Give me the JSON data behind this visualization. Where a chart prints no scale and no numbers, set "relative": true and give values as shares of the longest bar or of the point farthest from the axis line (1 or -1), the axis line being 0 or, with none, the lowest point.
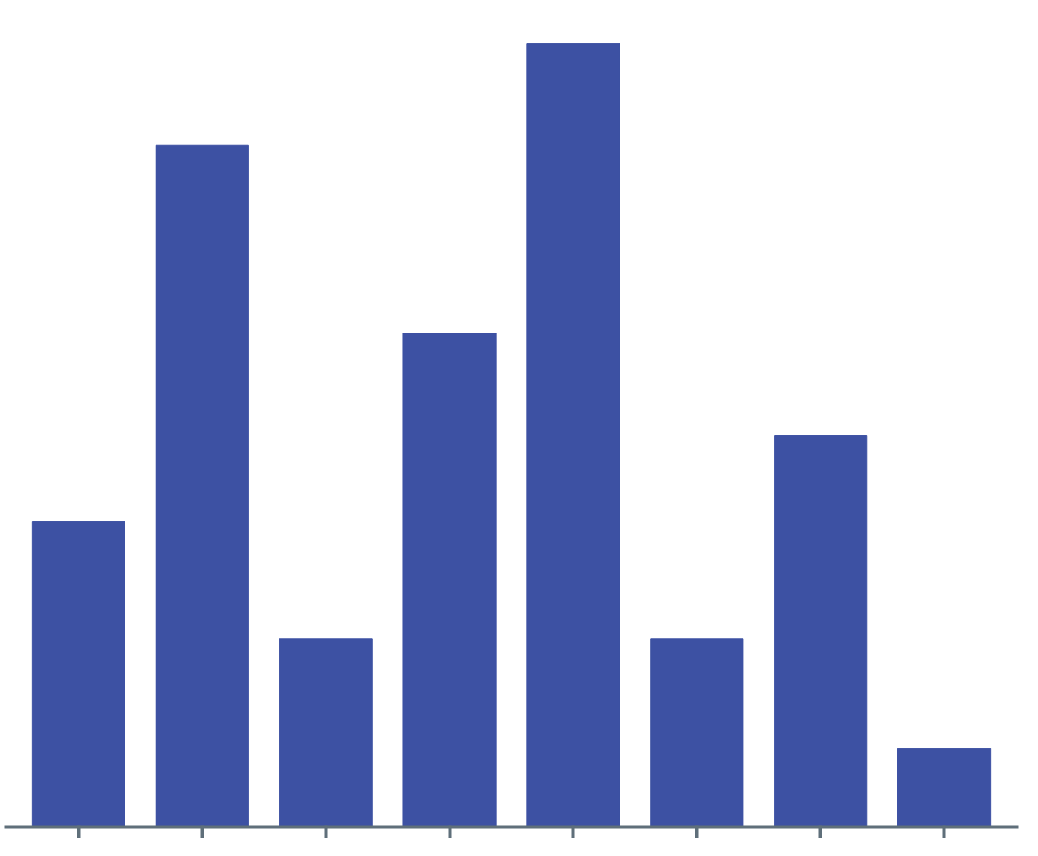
{
  "chart_data": {
    "type": "bar",
    "relative": true,
    "color": "#3d51a3",
    "categories": [
      null,
      null,
      null,
      null,
      null,
      null,
      null,
      null
    ],
    "values": [
      0.39,
      0.87,
      0.24,
      0.63,
      1,
      0.24,
      0.5,
      0.1
    ]
  }
}
